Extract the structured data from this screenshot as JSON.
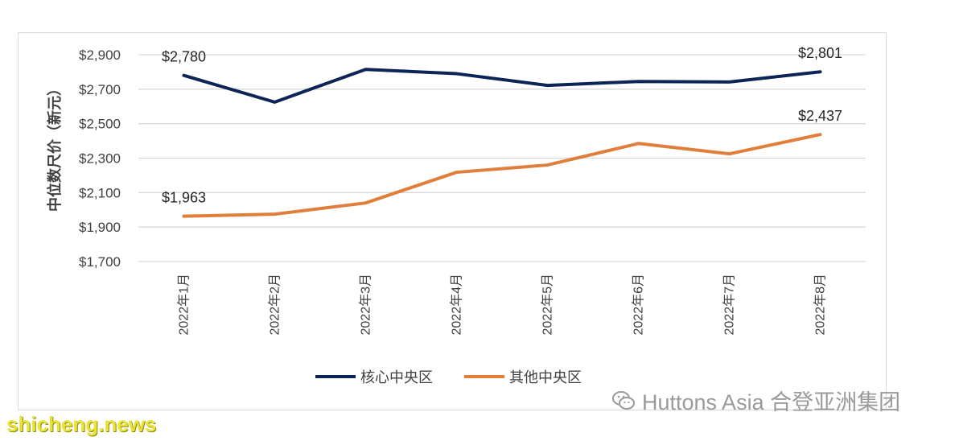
{
  "chart_data": {
    "type": "line",
    "title": "",
    "xlabel": "",
    "ylabel": "中位数尺价（新元）",
    "categories": [
      "2022年1月",
      "2022年2月",
      "2022年3月",
      "2022年4月",
      "2022年5月",
      "2022年6月",
      "2022年7月",
      "2022年8月"
    ],
    "ylim": [
      1700,
      2900
    ],
    "yticks": [
      1700,
      1900,
      2100,
      2300,
      2500,
      2700,
      2900
    ],
    "ytick_labels": [
      "$1,700",
      "$1,900",
      "$2,100",
      "$2,300",
      "$2,500",
      "$2,700",
      "$2,900"
    ],
    "grid": true,
    "legend_position": "bottom",
    "series": [
      {
        "name": "核心中央区",
        "color": "#0d2556",
        "values": [
          2780,
          2625,
          2815,
          2790,
          2722,
          2745,
          2742,
          2801
        ],
        "labels": [
          {
            "index": 0,
            "text": "$2,780"
          },
          {
            "index": 7,
            "text": "$2,801"
          }
        ]
      },
      {
        "name": "其他中央区",
        "color": "#e07f3c",
        "values": [
          1963,
          1975,
          2040,
          2218,
          2260,
          2385,
          2325,
          2437
        ],
        "labels": [
          {
            "index": 0,
            "text": "$1,963"
          },
          {
            "index": 7,
            "text": "$2,437"
          }
        ]
      }
    ]
  },
  "watermark": {
    "icon": "wechat-icon",
    "text": "Huttons Asia 合登亚洲集团"
  },
  "site_mark": {
    "text": "shicheng.news"
  }
}
